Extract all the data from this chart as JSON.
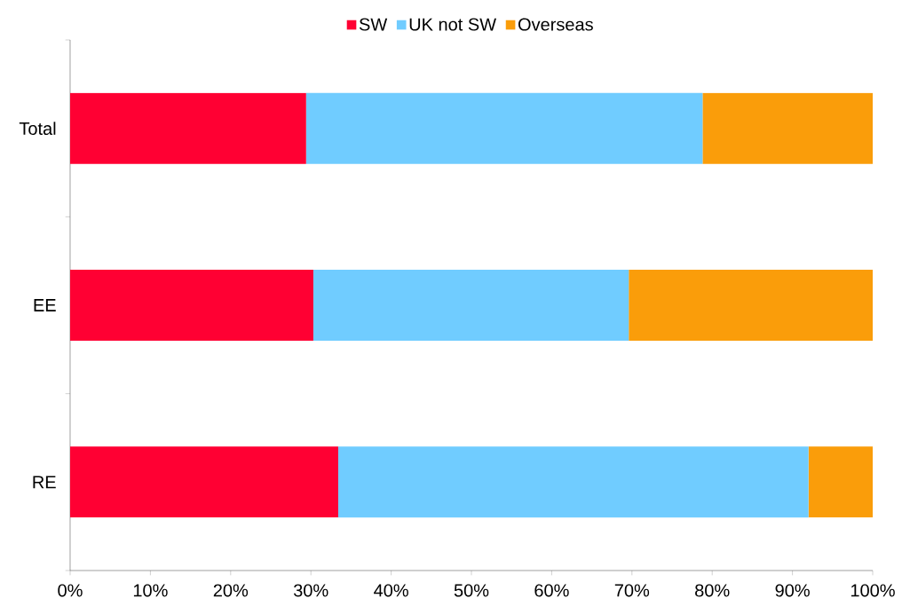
{
  "chart_data": {
    "type": "bar",
    "orientation": "horizontal",
    "stacked": true,
    "categories": [
      "Total",
      "EE",
      "RE"
    ],
    "series": [
      {
        "name": "SW",
        "color": "#ff0033",
        "values": [
          29.4,
          30.3,
          33.4
        ]
      },
      {
        "name": "UK not SW",
        "color": "#70ccff",
        "values": [
          49.4,
          39.3,
          58.6
        ]
      },
      {
        "name": "Overseas",
        "color": "#fa9d0a",
        "values": [
          21.2,
          30.4,
          8.0
        ]
      }
    ],
    "xlim": [
      0,
      100
    ],
    "xticks": [
      {
        "value": 0,
        "label": "0%"
      },
      {
        "value": 10,
        "label": "10%"
      },
      {
        "value": 20,
        "label": "20%"
      },
      {
        "value": 30,
        "label": "30%"
      },
      {
        "value": 40,
        "label": "40%"
      },
      {
        "value": 50,
        "label": "50%"
      },
      {
        "value": 60,
        "label": "60%"
      },
      {
        "value": 70,
        "label": "70%"
      },
      {
        "value": 80,
        "label": "80%"
      },
      {
        "value": 90,
        "label": "90%"
      },
      {
        "value": 100,
        "label": "100%"
      }
    ],
    "legend": "top",
    "grid": false
  }
}
